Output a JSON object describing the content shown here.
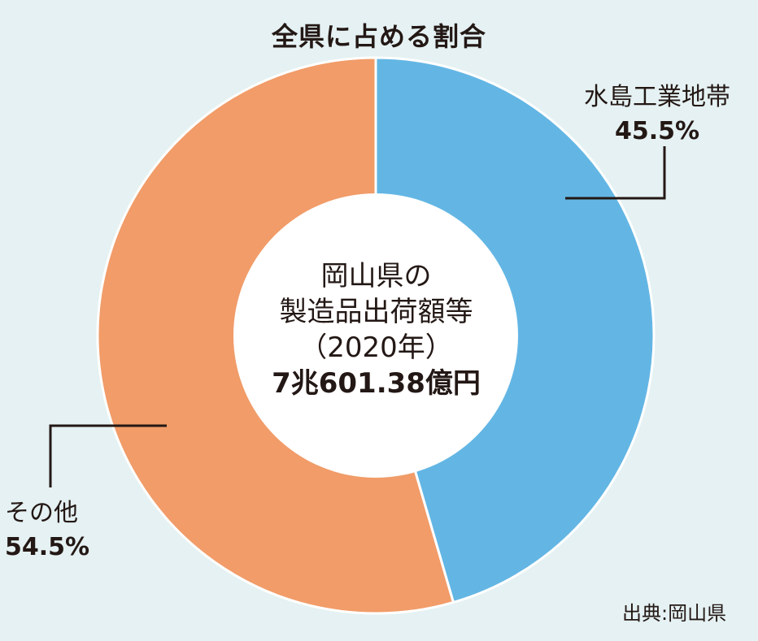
{
  "title": "全県に占める割合",
  "center": {
    "line1": "岡山県の",
    "line2": "製造品出荷額等",
    "line3": "（2020年）",
    "total": "7兆601.38億円"
  },
  "source": "出典:岡山県",
  "colors": {
    "background": "#e5f1f2",
    "mizushima": "#63b6e4",
    "other": "#f19c69",
    "center": "#ffffff",
    "leader": "#231815"
  },
  "chart_data": {
    "type": "pie",
    "style": "donut",
    "title": "全県に占める割合",
    "slices": [
      {
        "label": "水島工業地帯",
        "value": 45.5,
        "value_label": "45.5%"
      },
      {
        "label": "その他",
        "value": 54.5,
        "value_label": "54.5%"
      }
    ],
    "start_angle": "12 o'clock",
    "direction": "clockwise"
  }
}
